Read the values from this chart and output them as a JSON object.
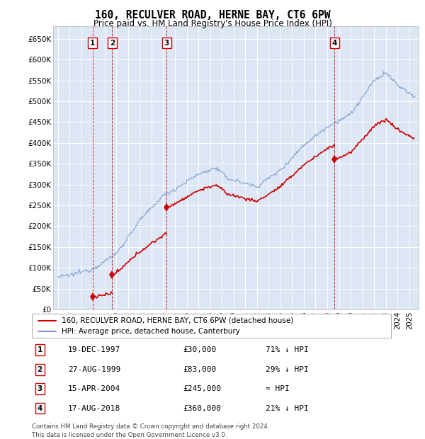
{
  "title": "160, RECULVER ROAD, HERNE BAY, CT6 6PW",
  "subtitle": "Price paid vs. HM Land Registry's House Price Index (HPI)",
  "background_color": "#ffffff",
  "plot_bg_color": "#dce6f5",
  "grid_color": "#ffffff",
  "sale_year_nums": [
    1997.9583,
    1999.6458,
    2004.2917,
    2018.625
  ],
  "sale_prices": [
    30000,
    83000,
    245000,
    360000
  ],
  "sale_labels": [
    "1",
    "2",
    "3",
    "4"
  ],
  "hpi_color": "#7799cc",
  "price_color": "#cc0000",
  "vline_color": "#cc0000",
  "ytick_labels": [
    "£0",
    "£50K",
    "£100K",
    "£150K",
    "£200K",
    "£250K",
    "£300K",
    "£350K",
    "£400K",
    "£450K",
    "£500K",
    "£550K",
    "£600K",
    "£650K"
  ],
  "ytick_values": [
    0,
    50000,
    100000,
    150000,
    200000,
    250000,
    300000,
    350000,
    400000,
    450000,
    500000,
    550000,
    600000,
    650000
  ],
  "ylim": [
    0,
    680000
  ],
  "xlim_start": 1994.6,
  "xlim_end": 2025.8,
  "legend_entries": [
    "160, RECULVER ROAD, HERNE BAY, CT6 6PW (detached house)",
    "HPI: Average price, detached house, Canterbury"
  ],
  "table_rows": [
    [
      "1",
      "19-DEC-1997",
      "£30,000",
      "71% ↓ HPI"
    ],
    [
      "2",
      "27-AUG-1999",
      "£83,000",
      "29% ↓ HPI"
    ],
    [
      "3",
      "15-APR-2004",
      "£245,000",
      "≈ HPI"
    ],
    [
      "4",
      "17-AUG-2018",
      "£360,000",
      "21% ↓ HPI"
    ]
  ],
  "footnote": "Contains HM Land Registry data © Crown copyright and database right 2024.\nThis data is licensed under the Open Government Licence v3.0."
}
